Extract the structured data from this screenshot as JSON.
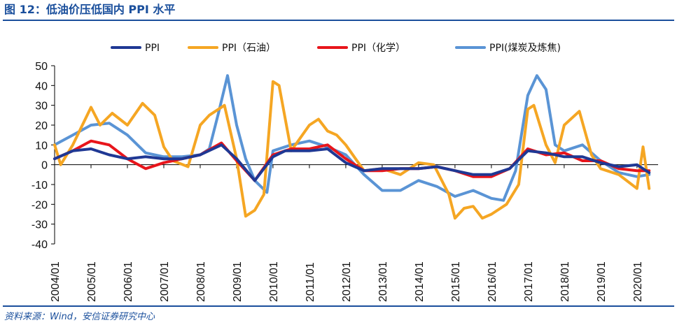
{
  "header": {
    "title": "图 12：低油价压低国内 PPI 水平"
  },
  "footer": {
    "source": "资料来源：Wind，安信证券研究中心"
  },
  "chart_data": {
    "type": "line",
    "title": "图 12：低油价压低国内 PPI 水平",
    "xlabel": "",
    "ylabel": "",
    "ylim": [
      -40,
      50
    ],
    "yticks": [
      50,
      40,
      30,
      20,
      10,
      0,
      -10,
      -20,
      -30,
      -40
    ],
    "xlim": [
      2004.0,
      2020.58
    ],
    "xticks": [
      "2004/01",
      "2005/01",
      "2006/01",
      "2007/01",
      "2008/01",
      "2009/01",
      "2010/01",
      "2011/01",
      "2012/01",
      "2013/01",
      "2014/01",
      "2015/01",
      "2016/01",
      "2017/01",
      "2018/01",
      "2019/01",
      "2020/01"
    ],
    "grid": false,
    "legend_position": "top",
    "series": [
      {
        "name": "PPI",
        "color": "#1f3894",
        "x": [
          "2004/01",
          "2004/07",
          "2005/01",
          "2005/07",
          "2006/01",
          "2006/07",
          "2007/01",
          "2007/07",
          "2008/01",
          "2008/08",
          "2009/01",
          "2009/07",
          "2010/01",
          "2010/05",
          "2011/01",
          "2011/07",
          "2012/01",
          "2012/07",
          "2013/01",
          "2013/07",
          "2014/01",
          "2014/07",
          "2015/01",
          "2015/07",
          "2016/01",
          "2016/07",
          "2017/01",
          "2017/07",
          "2018/01",
          "2018/07",
          "2019/01",
          "2019/07",
          "2020/01",
          "2020/05"
        ],
        "y": [
          3,
          7,
          8,
          5,
          3,
          4,
          3,
          3,
          5,
          10,
          3,
          -8,
          4,
          7,
          7,
          8,
          1,
          -3,
          -2,
          -2,
          -2,
          -1,
          -3,
          -5,
          -5,
          -2,
          7,
          6,
          4,
          4,
          1,
          -1,
          0,
          -4
        ]
      },
      {
        "name": "PPI（石油）",
        "color": "#f5a623",
        "x": [
          "2004/01",
          "2004/03",
          "2004/07",
          "2005/01",
          "2005/04",
          "2005/08",
          "2006/01",
          "2006/06",
          "2006/10",
          "2007/01",
          "2007/04",
          "2007/09",
          "2008/01",
          "2008/04",
          "2008/09",
          "2009/01",
          "2009/04",
          "2009/07",
          "2009/10",
          "2010/01",
          "2010/03",
          "2010/07",
          "2011/01",
          "2011/04",
          "2011/07",
          "2011/10",
          "2012/01",
          "2012/07",
          "2013/01",
          "2013/07",
          "2014/01",
          "2014/06",
          "2014/11",
          "2015/01",
          "2015/04",
          "2015/07",
          "2015/10",
          "2016/01",
          "2016/06",
          "2016/10",
          "2017/01",
          "2017/03",
          "2017/07",
          "2017/10",
          "2018/01",
          "2018/06",
          "2018/10",
          "2019/01",
          "2019/07",
          "2020/01",
          "2020/03",
          "2020/05"
        ],
        "y": [
          10,
          0,
          10,
          29,
          20,
          26,
          20,
          31,
          25,
          9,
          2,
          -1,
          20,
          25,
          30,
          3,
          -26,
          -23,
          -15,
          42,
          40,
          7,
          20,
          23,
          17,
          15,
          10,
          -3,
          -2,
          -5,
          1,
          0,
          -15,
          -27,
          -22,
          -21,
          -27,
          -25,
          -20,
          -10,
          28,
          30,
          10,
          1,
          20,
          27,
          5,
          -2,
          -5,
          -12,
          9,
          -12
        ]
      },
      {
        "name": "PPI（化学）",
        "color": "#e8151b",
        "x": [
          "2004/01",
          "2004/07",
          "2005/01",
          "2005/07",
          "2006/01",
          "2006/07",
          "2007/01",
          "2007/07",
          "2008/01",
          "2008/08",
          "2009/01",
          "2009/07",
          "2010/01",
          "2010/07",
          "2011/01",
          "2011/07",
          "2012/01",
          "2012/07",
          "2013/01",
          "2013/07",
          "2014/01",
          "2014/07",
          "2015/01",
          "2015/07",
          "2016/01",
          "2016/07",
          "2017/01",
          "2017/07",
          "2018/01",
          "2018/07",
          "2019/01",
          "2019/07",
          "2020/01",
          "2020/05"
        ],
        "y": [
          3,
          7,
          12,
          10,
          3,
          -2,
          1,
          3,
          5,
          11,
          2,
          -8,
          5,
          8,
          8,
          10,
          3,
          -3,
          -3,
          -2,
          -2,
          -1,
          -3,
          -6,
          -6,
          -2,
          8,
          5,
          6,
          2,
          2,
          -2,
          -3,
          -3
        ]
      },
      {
        "name": "PPI(煤炭及炼焦)",
        "color": "#5a94d5",
        "x": [
          "2004/01",
          "2004/07",
          "2005/01",
          "2005/07",
          "2006/01",
          "2006/07",
          "2007/01",
          "2007/07",
          "2008/01",
          "2008/04",
          "2008/07",
          "2008/10",
          "2009/01",
          "2009/04",
          "2009/07",
          "2009/11",
          "2010/01",
          "2010/07",
          "2011/01",
          "2011/07",
          "2012/01",
          "2012/07",
          "2013/01",
          "2013/07",
          "2014/01",
          "2014/07",
          "2015/01",
          "2015/07",
          "2016/01",
          "2016/05",
          "2016/09",
          "2017/01",
          "2017/04",
          "2017/07",
          "2017/10",
          "2018/01",
          "2018/07",
          "2019/01",
          "2019/07",
          "2020/01",
          "2020/05"
        ],
        "y": [
          10,
          15,
          20,
          21,
          15,
          6,
          4,
          4,
          5,
          8,
          26,
          45,
          20,
          3,
          -8,
          -14,
          7,
          10,
          12,
          9,
          5,
          -5,
          -13,
          -13,
          -8,
          -11,
          -16,
          -13,
          -17,
          -18,
          -3,
          35,
          45,
          38,
          10,
          7,
          10,
          2,
          -4,
          -6,
          -5
        ]
      }
    ]
  }
}
